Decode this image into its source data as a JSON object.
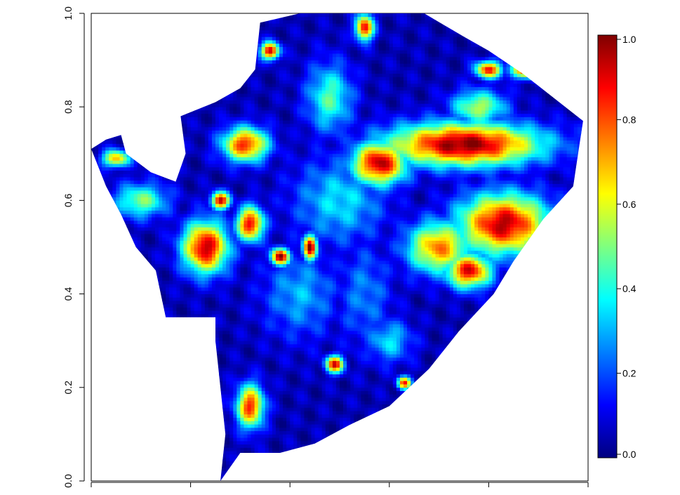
{
  "chart_data": {
    "type": "heatmap",
    "title": "",
    "xlabel": "",
    "ylabel": "",
    "xlim": [
      0,
      1
    ],
    "ylim": [
      0,
      1
    ],
    "x_tick_labels": [
      "",
      "",
      "",
      "",
      "",
      ""
    ],
    "y_ticks": [
      0.0,
      0.2,
      0.4,
      0.6,
      0.8,
      1.0
    ],
    "y_tick_labels": [
      "0.0",
      "0.2",
      "0.4",
      "0.6",
      "0.8",
      "1.0"
    ],
    "colorbar": {
      "range": [
        0,
        1
      ],
      "ticks": [
        0.0,
        0.2,
        0.4,
        0.6,
        0.8,
        1.0
      ],
      "tick_labels": [
        "0.0",
        "0.2",
        "0.4",
        "0.6",
        "0.8",
        "1.0"
      ],
      "colormap": [
        "#00007f",
        "#0000ff",
        "#007fff",
        "#00ffff",
        "#7fff7f",
        "#ffff00",
        "#ff7f00",
        "#ff0000",
        "#7f0000"
      ]
    },
    "region_outline": [
      [
        0.34,
        0.98
      ],
      [
        0.42,
        1.0
      ],
      [
        0.67,
        1.0
      ],
      [
        0.75,
        0.95
      ],
      [
        0.8,
        0.92
      ],
      [
        0.87,
        0.87
      ],
      [
        0.93,
        0.82
      ],
      [
        0.99,
        0.77
      ],
      [
        0.98,
        0.7
      ],
      [
        0.97,
        0.63
      ],
      [
        0.91,
        0.56
      ],
      [
        0.85,
        0.47
      ],
      [
        0.81,
        0.4
      ],
      [
        0.74,
        0.32
      ],
      [
        0.68,
        0.24
      ],
      [
        0.6,
        0.16
      ],
      [
        0.52,
        0.12
      ],
      [
        0.45,
        0.08
      ],
      [
        0.38,
        0.06
      ],
      [
        0.3,
        0.06
      ],
      [
        0.26,
        0.0
      ],
      [
        0.27,
        0.1
      ],
      [
        0.25,
        0.3
      ],
      [
        0.25,
        0.35
      ],
      [
        0.15,
        0.35
      ],
      [
        0.13,
        0.45
      ],
      [
        0.09,
        0.5
      ],
      [
        0.06,
        0.57
      ],
      [
        0.03,
        0.63
      ],
      [
        0.0,
        0.71
      ],
      [
        0.03,
        0.73
      ],
      [
        0.06,
        0.74
      ],
      [
        0.07,
        0.7
      ],
      [
        0.12,
        0.66
      ],
      [
        0.17,
        0.64
      ],
      [
        0.19,
        0.7
      ],
      [
        0.18,
        0.78
      ],
      [
        0.25,
        0.81
      ],
      [
        0.3,
        0.84
      ],
      [
        0.33,
        0.88
      ]
    ],
    "hotspots": [
      {
        "x": 0.75,
        "y": 0.72,
        "rx": 0.17,
        "ry": 0.05,
        "value": 1.0
      },
      {
        "x": 0.58,
        "y": 0.68,
        "rx": 0.06,
        "ry": 0.05,
        "value": 0.95
      },
      {
        "x": 0.83,
        "y": 0.55,
        "rx": 0.1,
        "ry": 0.07,
        "value": 0.95
      },
      {
        "x": 0.7,
        "y": 0.5,
        "rx": 0.07,
        "ry": 0.06,
        "value": 0.75
      },
      {
        "x": 0.76,
        "y": 0.45,
        "rx": 0.05,
        "ry": 0.04,
        "value": 0.9
      },
      {
        "x": 0.23,
        "y": 0.5,
        "rx": 0.05,
        "ry": 0.06,
        "value": 0.95
      },
      {
        "x": 0.32,
        "y": 0.55,
        "rx": 0.03,
        "ry": 0.04,
        "value": 0.9
      },
      {
        "x": 0.38,
        "y": 0.48,
        "rx": 0.02,
        "ry": 0.02,
        "value": 1.0
      },
      {
        "x": 0.44,
        "y": 0.5,
        "rx": 0.015,
        "ry": 0.03,
        "value": 1.0
      },
      {
        "x": 0.31,
        "y": 0.72,
        "rx": 0.05,
        "ry": 0.04,
        "value": 0.85
      },
      {
        "x": 0.26,
        "y": 0.6,
        "rx": 0.02,
        "ry": 0.02,
        "value": 0.95
      },
      {
        "x": 0.32,
        "y": 0.16,
        "rx": 0.03,
        "ry": 0.05,
        "value": 0.85
      },
      {
        "x": 0.49,
        "y": 0.25,
        "rx": 0.02,
        "ry": 0.02,
        "value": 0.9
      },
      {
        "x": 0.63,
        "y": 0.21,
        "rx": 0.015,
        "ry": 0.015,
        "value": 0.85
      },
      {
        "x": 0.55,
        "y": 0.97,
        "rx": 0.02,
        "ry": 0.03,
        "value": 0.9
      },
      {
        "x": 0.36,
        "y": 0.92,
        "rx": 0.02,
        "ry": 0.02,
        "value": 0.95
      },
      {
        "x": 0.88,
        "y": 0.88,
        "rx": 0.04,
        "ry": 0.02,
        "value": 0.9
      },
      {
        "x": 0.8,
        "y": 0.88,
        "rx": 0.03,
        "ry": 0.02,
        "value": 0.85
      },
      {
        "x": 0.5,
        "y": 0.6,
        "rx": 0.1,
        "ry": 0.1,
        "value": 0.35
      },
      {
        "x": 0.42,
        "y": 0.4,
        "rx": 0.08,
        "ry": 0.1,
        "value": 0.3
      },
      {
        "x": 0.55,
        "y": 0.4,
        "rx": 0.06,
        "ry": 0.12,
        "value": 0.25
      },
      {
        "x": 0.1,
        "y": 0.6,
        "rx": 0.06,
        "ry": 0.04,
        "value": 0.5
      },
      {
        "x": 0.05,
        "y": 0.69,
        "rx": 0.03,
        "ry": 0.02,
        "value": 0.7
      },
      {
        "x": 0.48,
        "y": 0.82,
        "rx": 0.05,
        "ry": 0.08,
        "value": 0.45
      },
      {
        "x": 0.78,
        "y": 0.8,
        "rx": 0.06,
        "ry": 0.04,
        "value": 0.55
      },
      {
        "x": 0.6,
        "y": 0.3,
        "rx": 0.05,
        "ry": 0.05,
        "value": 0.35
      }
    ]
  }
}
